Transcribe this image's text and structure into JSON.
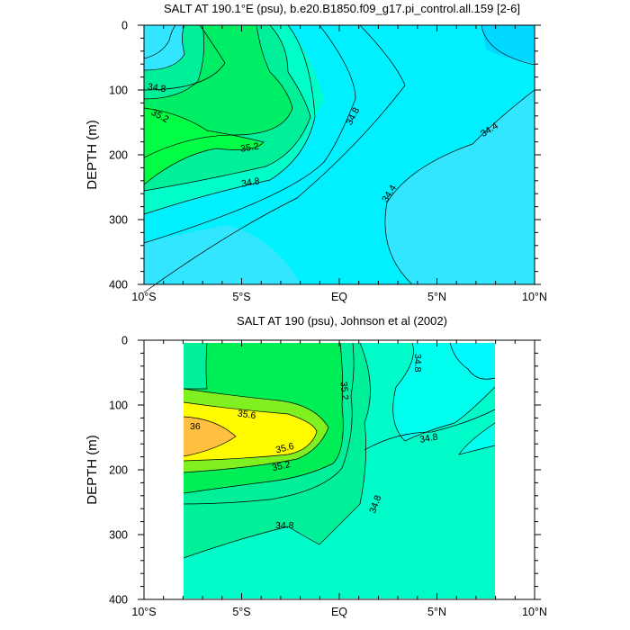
{
  "chart_data": [
    {
      "type": "contour",
      "title": "SALT AT 190.1°E (psu), b.e20.B1850.f09_g17.pi_control.all.159 [2-6]",
      "ylabel": "DEPTH (m)",
      "xlabel": "",
      "x_ticks": [
        "10°S",
        "5°S",
        "EQ",
        "5°N",
        "10°N"
      ],
      "x_tick_values": [
        -10,
        -5,
        0,
        5,
        10
      ],
      "y_ticks": [
        "0",
        "100",
        "200",
        "300",
        "400"
      ],
      "y_tick_values": [
        0,
        100,
        200,
        300,
        400
      ],
      "xlim": [
        -10,
        10
      ],
      "ylim": [
        400,
        0
      ],
      "data_x_range": [
        -10,
        10
      ],
      "data_y_range": [
        0,
        400
      ],
      "contour_interval": 0.2,
      "contour_labels": [
        "34.8",
        "35.2",
        "35.2",
        "34.8",
        "34.8",
        "34.4",
        "34.4"
      ],
      "colors": {
        "s_lt_34_4": "#00d8ff",
        "s_34_4": "#00f0ff",
        "s_34_6": "#33e6ff",
        "s_34_8": "#00ffc8",
        "s_35_0": "#00f09a",
        "s_35_2": "#00ee66",
        "s_35_4": "#00ff44"
      }
    },
    {
      "type": "contour",
      "title": "SALT AT 190 (psu), Johnson et al (2002)",
      "ylabel": "DEPTH (m)",
      "xlabel": "",
      "x_ticks": [
        "10°S",
        "5°S",
        "EQ",
        "5°N",
        "10°N"
      ],
      "x_tick_values": [
        -10,
        -5,
        0,
        5,
        10
      ],
      "y_ticks": [
        "0",
        "100",
        "200",
        "300",
        "400"
      ],
      "y_tick_values": [
        0,
        100,
        200,
        300,
        400
      ],
      "xlim": [
        -10,
        10
      ],
      "ylim": [
        400,
        0
      ],
      "data_x_range": [
        -8,
        8
      ],
      "data_y_range": [
        5,
        400
      ],
      "contour_interval": 0.2,
      "contour_labels": [
        "34.8",
        "35.2",
        "35.6",
        "36",
        "35.6",
        "35.2",
        "34.8",
        "34.8",
        "34.8"
      ],
      "colors": {
        "s_lt_34_6": "#00f8ff",
        "s_34_6": "#00ffee",
        "s_34_8": "#00fcc8",
        "s_35_0": "#00e890",
        "s_35_2": "#00ee55",
        "s_35_4": "#80f020",
        "s_35_6": "#fffc00",
        "s_36_0": "#ffc040"
      }
    }
  ]
}
